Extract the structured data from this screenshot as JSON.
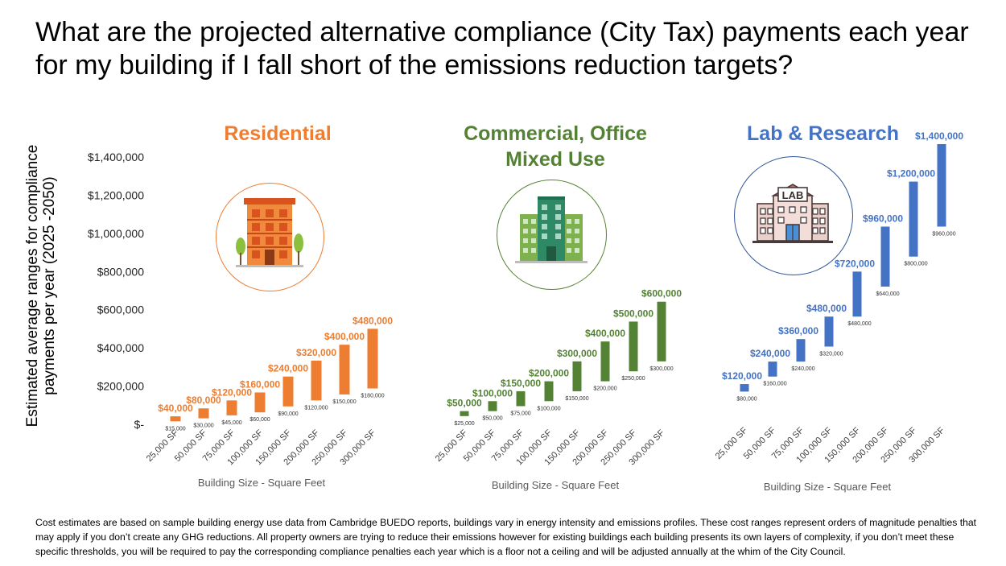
{
  "title": "What are the projected  alternative compliance (City Tax) payments each year for my building if  I fall short of the emissions reduction targets?",
  "y_axis_title": "Estimated average ranges for compliance payments per year (2025 -2050)",
  "footnote": "Cost estimates are based on sample building energy use data from Cambridge BUEDO reports, buildings vary in energy intensity and emissions profiles. These cost ranges represent orders of magnitude penalties that may apply if you don’t create any GHG reductions. All property owners are trying to reduce their emissions however for existing buildings each building presents its own layers of complexity, if you don’t meet these specific thresholds, you will be required to pay the corresponding compliance penalties each year which is a floor not a ceiling and will be adjusted annually at the whim of the City Council.",
  "colors": {
    "residential": "#ED7D31",
    "commercial": "#548235",
    "lab": "#4472C4"
  },
  "icons": {
    "residential": "apartment-building-icon",
    "commercial": "office-building-icon",
    "lab": "lab-building-icon"
  },
  "icon_text": {
    "lab_sign": "LAB"
  },
  "chart_data": [
    {
      "type": "bar",
      "subtype": "floating-range",
      "title": "Residential",
      "xlabel": "Building Size - Square Feet",
      "ylabel": "Estimated average ranges for compliance payments per year (2025 -2050)",
      "ylim": [
        0,
        1400000
      ],
      "yticks": [
        "$-",
        "$200,000",
        "$400,000",
        "$600,000",
        "$800,000",
        "$1,000,000",
        "$1,200,000",
        "$1,400,000"
      ],
      "categories": [
        "25,000 SF",
        "50,000 SF",
        "75,000 SF",
        "100,000 SF",
        "150,000 SF",
        "200,000 SF",
        "250,000 SF",
        "300,000 SF"
      ],
      "low": [
        15000,
        30000,
        45000,
        60000,
        90000,
        120000,
        150000,
        180000
      ],
      "high": [
        40000,
        80000,
        120000,
        160000,
        240000,
        320000,
        400000,
        480000
      ],
      "low_labels": [
        "$15,000",
        "$30,000",
        "$45,000",
        "$60,000",
        "$90,000",
        "$120,000",
        "$150,000",
        "$180,000"
      ],
      "high_labels": [
        "$40,000",
        "$80,000",
        "$120,000",
        "$160,000",
        "$240,000",
        "$320,000",
        "$400,000",
        "$480,000"
      ],
      "grid": false,
      "legend": "none"
    },
    {
      "type": "bar",
      "subtype": "floating-range",
      "title": "Commercial, Office Mixed Use",
      "xlabel": "Building Size - Square Feet",
      "ylim": [
        0,
        1400000
      ],
      "categories": [
        "25,000 SF",
        "50,000 SF",
        "75,000 SF",
        "100,000 SF",
        "150,000 SF",
        "200,000 SF",
        "250,000 SF",
        "300,000 SF"
      ],
      "low": [
        25000,
        50000,
        75000,
        100000,
        150000,
        200000,
        250000,
        300000
      ],
      "high": [
        50000,
        100000,
        150000,
        200000,
        300000,
        400000,
        500000,
        600000
      ],
      "low_labels": [
        "$25,000",
        "$50,000",
        "$75,000",
        "$100,000",
        "$150,000",
        "$200,000",
        "$250,000",
        "$300,000"
      ],
      "high_labels": [
        "$50,000",
        "$100,000",
        "$150,000",
        "$200,000",
        "$300,000",
        "$400,000",
        "$500,000",
        "$600,000"
      ],
      "grid": false,
      "legend": "none"
    },
    {
      "type": "bar",
      "subtype": "floating-range",
      "title": "Lab & Research",
      "xlabel": "Building Size - Square Feet",
      "ylim": [
        0,
        1400000
      ],
      "categories": [
        "25,000 SF",
        "50,000 SF",
        "75,000 SF",
        "100,000 SF",
        "150,000 SF",
        "200,000 SF",
        "250,000 SF",
        "300,000 SF"
      ],
      "low": [
        80000,
        160000,
        240000,
        320000,
        480000,
        640000,
        800000,
        960000
      ],
      "high": [
        120000,
        240000,
        360000,
        480000,
        720000,
        960000,
        1200000,
        1400000
      ],
      "low_labels": [
        "$80,000",
        "$160,000",
        "$240,000",
        "$320,000",
        "$480,000",
        "$640,000",
        "$800,000",
        "$960,000"
      ],
      "high_labels": [
        "$120,000",
        "$240,000",
        "$360,000",
        "$480,000",
        "$720,000",
        "$960,000",
        "$1,200,000",
        "$1,400,000"
      ],
      "grid": false,
      "legend": "none"
    }
  ]
}
